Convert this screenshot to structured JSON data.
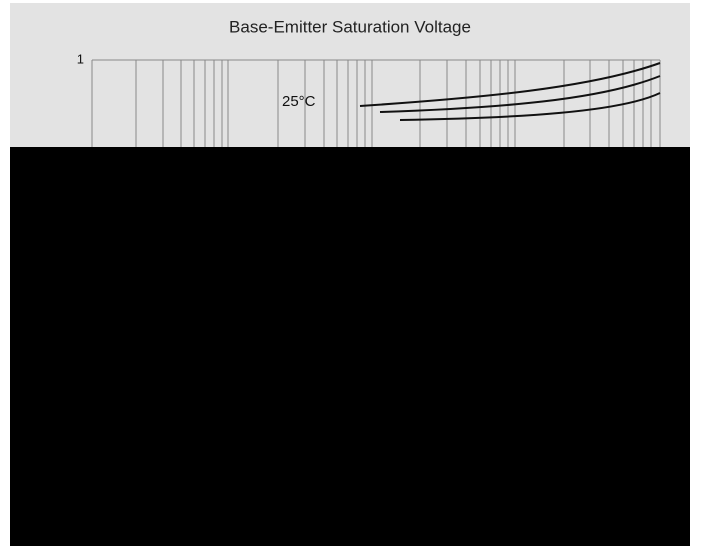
{
  "header": {
    "title": "Base-Emitter Saturation Voltage"
  },
  "chart": {
    "y_tick_label": "1",
    "curve_label": "25°C"
  }
}
